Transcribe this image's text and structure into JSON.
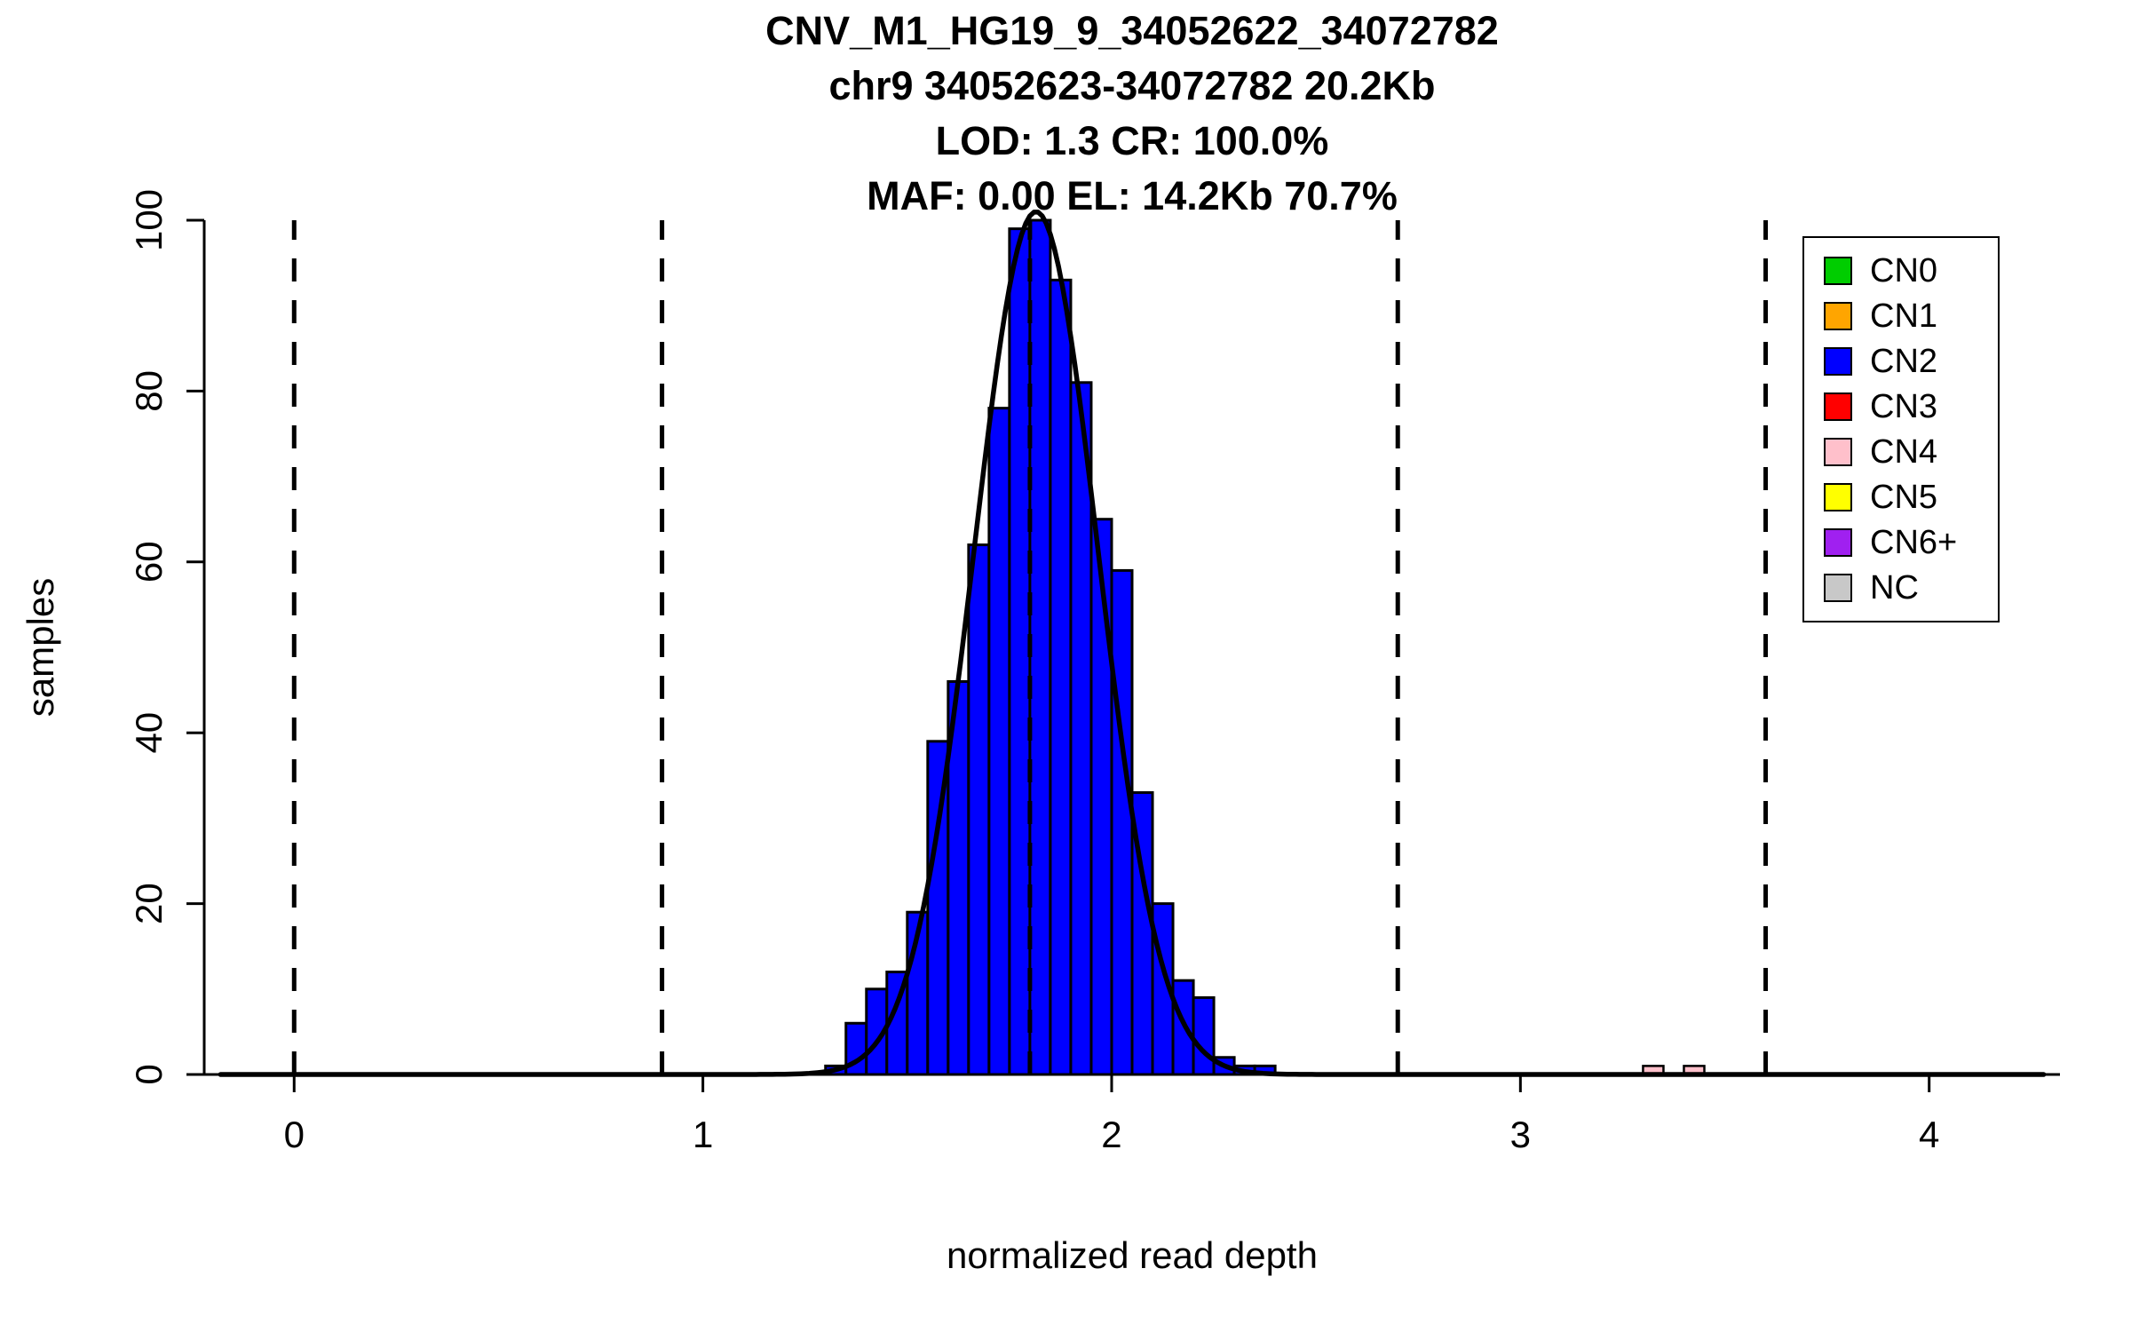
{
  "page": {
    "background": "#ffffff"
  },
  "chart_data": {
    "type": "bar",
    "subtype": "histogram-with-gaussian-fit",
    "title_lines": [
      "CNV_M1_HG19_9_34052622_34072782",
      "chr9 34052623-34072782 20.2Kb",
      "LOD: 1.3 CR: 100.0%",
      "MAF: 0.00 EL: 14.2Kb 70.7%"
    ],
    "xlabel": "normalized read depth",
    "ylabel": "samples",
    "xlim": [
      -0.22,
      4.32
    ],
    "ylim": [
      0,
      100
    ],
    "x_ticks": [
      0,
      1,
      2,
      3,
      4
    ],
    "y_ticks": [
      0,
      20,
      40,
      60,
      80,
      100
    ],
    "grid": false,
    "bin_width": 0.05,
    "histogram": {
      "series_label": "CN2",
      "color": "#0000FF",
      "bin_start": [
        1.3,
        1.35,
        1.4,
        1.45,
        1.5,
        1.55,
        1.6,
        1.65,
        1.7,
        1.75,
        1.8,
        1.85,
        1.9,
        1.95,
        2.0,
        2.05,
        2.1,
        2.15,
        2.2,
        2.25,
        2.3,
        2.35
      ],
      "counts": [
        1,
        6,
        10,
        12,
        19,
        39,
        46,
        62,
        78,
        99,
        100,
        93,
        81,
        65,
        59,
        33,
        20,
        11,
        9,
        2,
        1,
        1
      ]
    },
    "extra_bars": [
      {
        "series_label": "CN4",
        "color": "#FFC0CB",
        "bin_start": 3.3,
        "count": 1
      },
      {
        "series_label": "CN4",
        "color": "#FFC0CB",
        "bin_start": 3.4,
        "count": 1
      }
    ],
    "fit_curve": {
      "mu": 1.815,
      "sigma": 0.152,
      "amplitude": 101,
      "color": "#000000"
    },
    "cn_boundaries": [
      0,
      0.9,
      1.8,
      2.7,
      3.6
    ],
    "boundary_style": {
      "color": "#000000",
      "dashed": true
    },
    "legend": {
      "position": "top-right",
      "entries": [
        {
          "label": "CN0",
          "color": "#00CD00"
        },
        {
          "label": "CN1",
          "color": "#FFA500"
        },
        {
          "label": "CN2",
          "color": "#0000FF"
        },
        {
          "label": "CN3",
          "color": "#FF0000"
        },
        {
          "label": "CN4",
          "color": "#FFC0CB"
        },
        {
          "label": "CN5",
          "color": "#FFFF00"
        },
        {
          "label": "CN6+",
          "color": "#A020F0"
        },
        {
          "label": "NC",
          "color": "#C8C8C8"
        }
      ]
    }
  }
}
